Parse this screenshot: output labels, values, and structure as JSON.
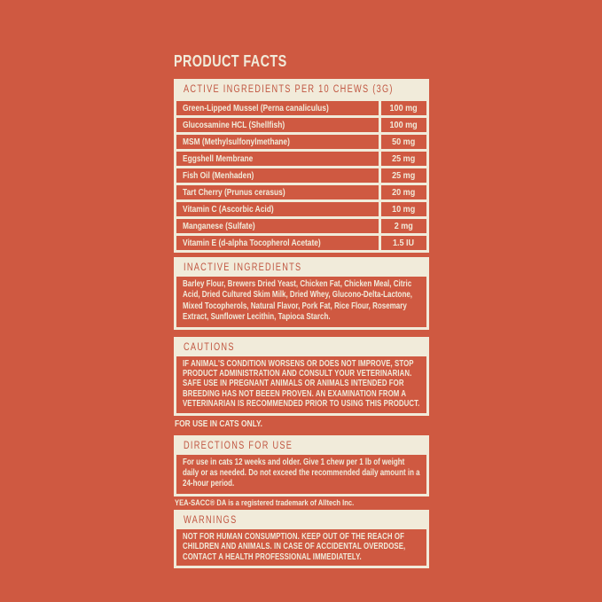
{
  "page": {
    "title": "PRODUCT FACTS",
    "colors": {
      "background": "#CF5941",
      "cream": "#F1EBDA",
      "header_text": "#C05540"
    }
  },
  "active_ingredients": {
    "header": "ACTIVE INGREDIENTS PER 10 CHEWS (3G)",
    "rows": [
      {
        "label": "Green-Lipped Mussel (Perna canaliculus)",
        "amount": "100 mg"
      },
      {
        "label": "Glucosamine HCL (Shellfish)",
        "amount": "100 mg"
      },
      {
        "label": "MSM (Methylsulfonylmethane)",
        "amount": "50 mg"
      },
      {
        "label": "Eggshell Membrane",
        "amount": "25 mg"
      },
      {
        "label": "Fish Oil (Menhaden)",
        "amount": "25 mg"
      },
      {
        "label": "Tart Cherry (Prunus cerasus)",
        "amount": "20 mg"
      },
      {
        "label": "Vitamin C (Ascorbic Acid)",
        "amount": "10 mg"
      },
      {
        "label": "Manganese (Sulfate)",
        "amount": "2 mg"
      },
      {
        "label": "Vitamin E (d-alpha Tocopherol Acetate)",
        "amount": "1.5 IU"
      }
    ]
  },
  "inactive_ingredients": {
    "header": "INACTIVE INGREDIENTS",
    "body": "Barley Flour, Brewers Dried Yeast, Chicken Fat, Chicken Meal, Citric Acid, Dried Cultured Skim Milk, Dried Whey, Glucono-Delta-Lactone, Mixed Tocopherols, Natural Flavor, Pork Fat, Rice Flour, Rosemary Extract, Sunflower Lecithin, Tapioca Starch."
  },
  "cautions": {
    "header": "CAUTIONS",
    "body": "IF ANIMAL'S CONDITION WORSENS OR DOES NOT IMPROVE, STOP PRODUCT ADMINISTRATION AND CONSULT YOUR VETERINARIAN. SAFE USE IN PREGNANT ANIMALS OR ANIMALS INTENDED FOR BREEDING HAS NOT BEEEN PROVEN. AN EXAMINATION FROM A VETERINARIAN IS RECOMMENDED PRIOR TO USING THIS PRODUCT.",
    "note": "FOR USE IN CATS ONLY."
  },
  "directions": {
    "header": "DIRECTIONS FOR USE",
    "body": "For use in cats 12 weeks and older. Give 1 chew per 1 lb of weight daily or as needed. Do not exceed the recommended daily amount in a 24-hour period.",
    "trademark_note": "YEA-SACC® DA is a registered trademark of Alltech Inc."
  },
  "warnings": {
    "header": "WARNINGS",
    "body": "NOT FOR HUMAN CONSUMPTION. KEEP OUT OF THE REACH OF CHILDREN AND ANIMALS. IN CASE OF ACCIDENTAL OVERDOSE, CONTACT A HEALTH PROFESSIONAL IMMEDIATELY."
  }
}
